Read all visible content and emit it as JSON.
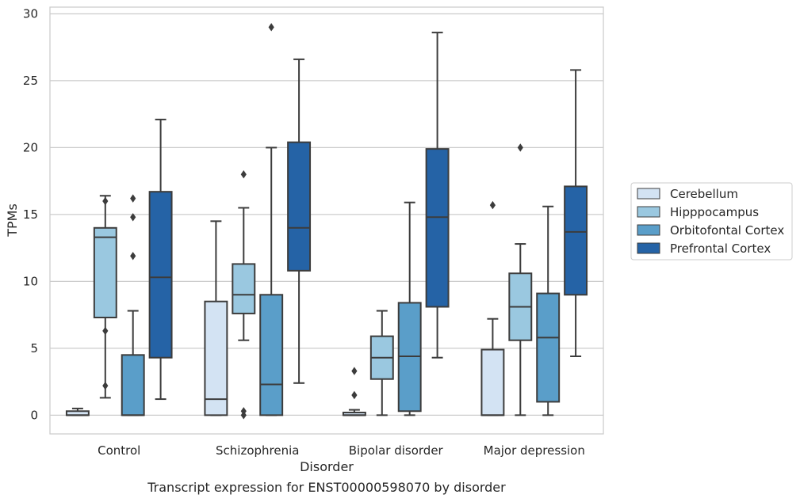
{
  "caption": "Transcript expression for ENST00000598070 by disorder",
  "chart_data": {
    "type": "box",
    "xlabel": "Disorder",
    "ylabel": "TPMs",
    "ylim": [
      -1.4,
      30.5
    ],
    "yticks": [
      0,
      5,
      10,
      15,
      20,
      25,
      30
    ],
    "grid": "horizontal",
    "legend_position": "right",
    "categories": [
      "Control",
      "Schizophrenia",
      "Bipolar disorder",
      "Major depression"
    ],
    "series": [
      {
        "name": "Cerebellum",
        "color": "#d3e3f3",
        "boxes": [
          {
            "whisker_low": 0,
            "q1": 0,
            "median": 0,
            "q3": 0.3,
            "whisker_high": 0.5,
            "outliers": []
          },
          {
            "whisker_low": 0,
            "q1": 0,
            "median": 1.2,
            "q3": 8.5,
            "whisker_high": 14.5,
            "outliers": []
          },
          {
            "whisker_low": 0,
            "q1": 0,
            "median": 0,
            "q3": 0.2,
            "whisker_high": 0.4,
            "outliers": [
              1.5,
              3.3
            ]
          },
          {
            "whisker_low": 0,
            "q1": 0,
            "median": 0,
            "q3": 4.9,
            "whisker_high": 7.2,
            "outliers": [
              15.7
            ]
          }
        ]
      },
      {
        "name": "Hipppocampus",
        "color": "#9ac8e0",
        "boxes": [
          {
            "whisker_low": 1.3,
            "q1": 7.3,
            "median": 13.3,
            "q3": 14.0,
            "whisker_high": 16.4,
            "outliers": [
              2.2,
              6.3,
              16.0
            ]
          },
          {
            "whisker_low": 5.6,
            "q1": 7.6,
            "median": 9.0,
            "q3": 11.3,
            "whisker_high": 15.5,
            "outliers": [
              0,
              0.3,
              18.0
            ]
          },
          {
            "whisker_low": 0,
            "q1": 2.7,
            "median": 4.3,
            "q3": 5.9,
            "whisker_high": 7.8,
            "outliers": []
          },
          {
            "whisker_low": 0,
            "q1": 5.6,
            "median": 8.1,
            "q3": 10.6,
            "whisker_high": 12.8,
            "outliers": [
              20.0
            ]
          }
        ]
      },
      {
        "name": "Orbitofontal Cortex",
        "color": "#5a9ec9",
        "boxes": [
          {
            "whisker_low": 0,
            "q1": 0,
            "median": 0,
            "q3": 4.5,
            "whisker_high": 7.8,
            "outliers": [
              11.9,
              14.8,
              16.2
            ]
          },
          {
            "whisker_low": 0,
            "q1": 0,
            "median": 2.3,
            "q3": 9.0,
            "whisker_high": 20.0,
            "outliers": [
              29.0
            ]
          },
          {
            "whisker_low": 0,
            "q1": 0.3,
            "median": 4.4,
            "q3": 8.4,
            "whisker_high": 15.9,
            "outliers": []
          },
          {
            "whisker_low": 0,
            "q1": 1.0,
            "median": 5.8,
            "q3": 9.1,
            "whisker_high": 15.6,
            "outliers": []
          }
        ]
      },
      {
        "name": "Prefrontal Cortex",
        "color": "#2563a6",
        "boxes": [
          {
            "whisker_low": 1.2,
            "q1": 4.3,
            "median": 10.3,
            "q3": 16.7,
            "whisker_high": 22.1,
            "outliers": []
          },
          {
            "whisker_low": 2.4,
            "q1": 10.8,
            "median": 14.0,
            "q3": 20.4,
            "whisker_high": 26.6,
            "outliers": []
          },
          {
            "whisker_low": 4.3,
            "q1": 8.1,
            "median": 14.8,
            "q3": 19.9,
            "whisker_high": 28.6,
            "outliers": []
          },
          {
            "whisker_low": 4.4,
            "q1": 9.0,
            "median": 13.7,
            "q3": 17.1,
            "whisker_high": 25.8,
            "outliers": []
          }
        ]
      }
    ]
  }
}
